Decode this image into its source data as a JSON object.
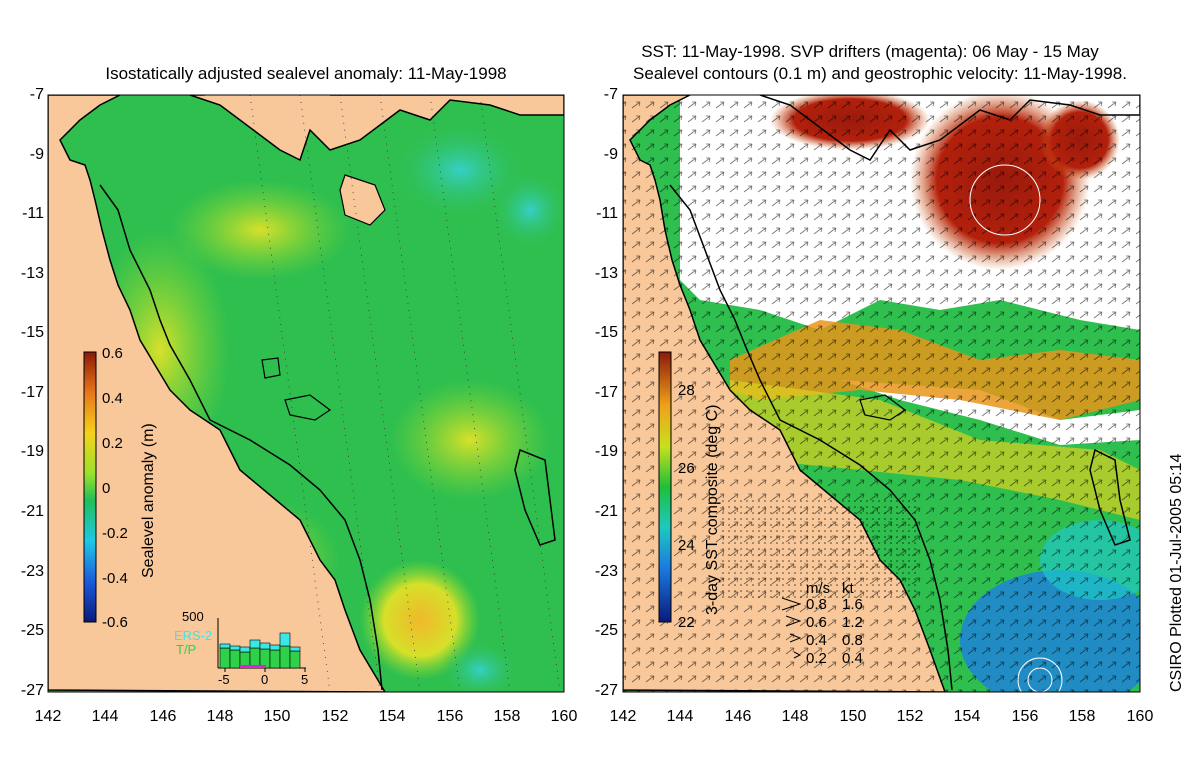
{
  "left_panel": {
    "title": "Isostatically adjusted sealevel anomaly: 11-May-1998",
    "colorbar": {
      "label": "Sealevel anomaly (m)",
      "ticks": [
        "0.6",
        "0.4",
        "0.2",
        "0",
        "-0.2",
        "-0.4",
        "-0.6"
      ]
    },
    "inset": {
      "ymax_label": "500",
      "x_ticks": [
        "-5",
        "0",
        "5"
      ],
      "legend": [
        "ERS-2",
        "T/P"
      ]
    }
  },
  "right_panel": {
    "title_line1": "SST: 11-May-1998. SVP drifters (magenta): 06 May - 15 May",
    "title_line2": "Sealevel contours (0.1 m) and geostrophic velocity: 11-May-1998.",
    "colorbar": {
      "label": "3-day SST composite (deg C)",
      "ticks": [
        "28",
        "26",
        "24",
        "22"
      ]
    },
    "velocity_legend": {
      "header_ms": "m/s",
      "header_kt": "kt",
      "rows": [
        {
          "ms": "0.8",
          "kt": "1.6"
        },
        {
          "ms": "0.6",
          "kt": "1.2"
        },
        {
          "ms": "0.4",
          "kt": "0.8"
        },
        {
          "ms": "0.2",
          "kt": "0.4"
        }
      ]
    }
  },
  "axes": {
    "y_ticks": [
      "-7",
      "-9",
      "-11",
      "-13",
      "-15",
      "-17",
      "-19",
      "-21",
      "-23",
      "-25",
      "-27"
    ],
    "x_ticks": [
      "142",
      "144",
      "146",
      "148",
      "150",
      "152",
      "154",
      "156",
      "158",
      "160"
    ]
  },
  "credit": "CSIRO Plotted 01-Jul-2005 05:14",
  "colors": {
    "land": "#f9c89a",
    "ocean_green": "#2fbf4f",
    "ocean_yellowgreen": "#8edb2c",
    "cloud_white": "#ffffff",
    "warm_red": "#b3200c"
  }
}
